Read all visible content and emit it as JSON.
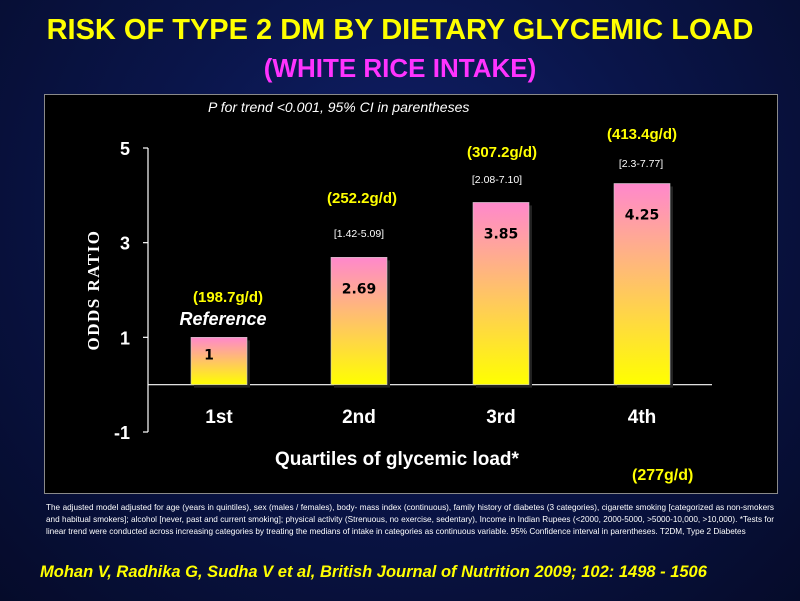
{
  "title": "RISK OF TYPE 2 DM BY DIETARY GLYCEMIC LOAD",
  "subtitle": "(WHITE RICE INTAKE)",
  "p_trend_note": "P for trend <0.001, 95% CI in parentheses",
  "reference_label": "Reference",
  "extra_note": "(277g/d)",
  "footnote": "The adjusted model adjusted for age (years in quintiles), sex (males / females), body- mass index (continuous), family history of diabetes (3 categories), cigarette smoking [categorized as non-smokers and habitual smokers]; alcohol [never, past and current smoking]; physical activity (Strenuous, no exercise, sedentary), Income in Indian Rupees (<2000, 2000-5000, >5000-10,000, >10,000). *Tests for linear trend were conducted across increasing categories by treating the medians of intake in categories as continuous variable. 95% Confidence interval in parentheses.  T2DM, Type 2 Diabetes",
  "citation": "Mohan V, Radhika G, Sudha V et al, British Journal of Nutrition 2009; 102: 1498 - 1506",
  "colors": {
    "title": "#ffff00",
    "subtitle": "#ff33ff",
    "bar_top": "#ff88cc",
    "bar_bottom": "#ffff00",
    "annotation": "#ffff00"
  },
  "chart_data": {
    "type": "bar",
    "categories": [
      "1st",
      "2nd",
      "3rd",
      "4th"
    ],
    "values": [
      1,
      2.69,
      3.85,
      4.25
    ],
    "value_labels": [
      "1",
      "2.69",
      "3.85",
      "4.25"
    ],
    "intakes": [
      "(198.7g/d)",
      "(252.2g/d)",
      "(307.2g/d)",
      "(413.4g/d)"
    ],
    "ci_labels": [
      "",
      "[1.42-5.09]",
      "[2.08-7.10]",
      "[2.3-7.77]"
    ],
    "xlabel": "Quartiles of glycemic load*",
    "ylabel": "ODDS RATIO",
    "yticks": [
      "-1",
      "1",
      "3",
      "5"
    ],
    "ylim": [
      -1,
      5
    ],
    "baseline": 0,
    "grid": false
  }
}
